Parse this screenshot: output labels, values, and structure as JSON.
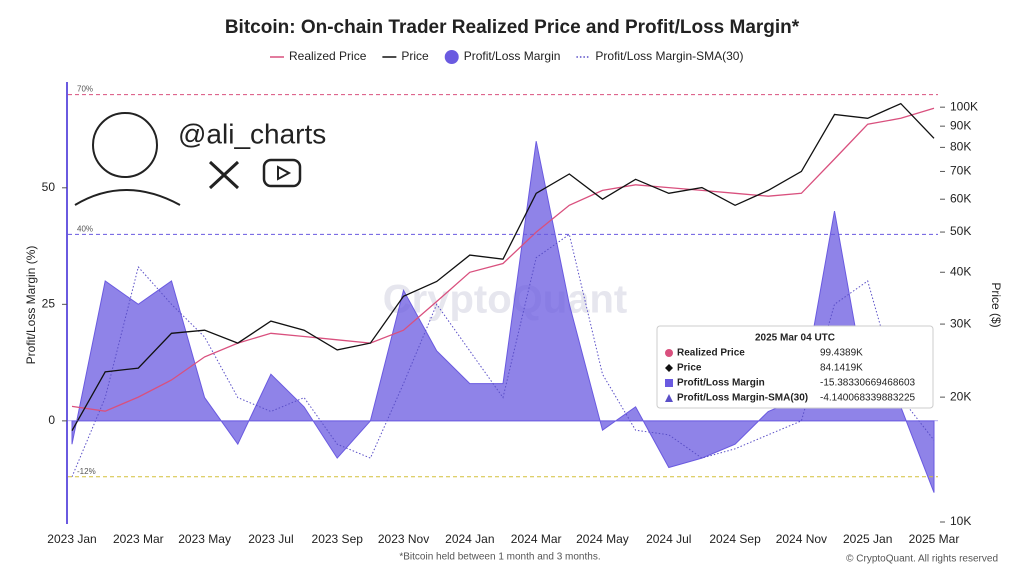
{
  "chart_data": {
    "type": "line",
    "title": "Bitcoin: On-chain Trader Realized Price and Profit/Loss Margin*",
    "y_label": "Profit/Loss Margin (%)",
    "y2_label": "Price ($)",
    "footnote": "*Bitcoin held between 1 month and 3 months.",
    "credit": "© CryptoQuant. All rights reserved",
    "watermark": "CryptoQuant",
    "handle": "@ali_charts",
    "categories": [
      "2023 Jan",
      null,
      "2023 Mar",
      null,
      "2023 May",
      null,
      "2023 Jul",
      null,
      "2023 Sep",
      null,
      "2023 Nov",
      null,
      "2024 Jan",
      null,
      "2024 Mar",
      null,
      "2024 May",
      null,
      "2024 Jul",
      null,
      "2024 Sep",
      null,
      "2024 Nov",
      null,
      "2025 Jan",
      null,
      "2025 Mar"
    ],
    "series": [
      {
        "name": "Realized Price",
        "color": "#d9507e",
        "axis": "y2",
        "style": "line",
        "values": [
          19000,
          18500,
          20000,
          22000,
          25000,
          27000,
          28500,
          28000,
          27500,
          27000,
          29000,
          34000,
          40000,
          42000,
          50000,
          58000,
          63000,
          65000,
          64000,
          63000,
          62000,
          61000,
          62000,
          75000,
          91000,
          94000,
          99438.9
        ]
      },
      {
        "name": "Price",
        "color": "#111111",
        "axis": "y2",
        "style": "line",
        "values": [
          16600,
          23000,
          23500,
          28500,
          29000,
          27000,
          30500,
          29000,
          26000,
          27000,
          35000,
          38000,
          44000,
          43000,
          62000,
          69000,
          60000,
          67000,
          62000,
          64000,
          58000,
          63000,
          70000,
          96000,
          94000,
          102000,
          84141.9
        ]
      },
      {
        "name": "Profit/Loss Margin",
        "color": "#6a5ae0",
        "axis": "y",
        "style": "area",
        "values": [
          -5,
          30,
          25,
          30,
          5,
          -5,
          10,
          3,
          -8,
          0,
          28,
          15,
          8,
          8,
          60,
          25,
          -2,
          3,
          -10,
          -8,
          -5,
          2,
          5,
          45,
          5,
          3,
          -15.38330669468603
        ]
      },
      {
        "name": "Profit/Loss Margin-SMA(30)",
        "color": "#5a4fc7",
        "axis": "y",
        "style": "dotted",
        "values": [
          -12,
          5,
          33,
          25,
          18,
          5,
          2,
          5,
          -5,
          -8,
          8,
          25,
          15,
          5,
          35,
          40,
          10,
          -2,
          -3,
          -8,
          -6,
          -3,
          0,
          25,
          30,
          5,
          -4.140068339883225
        ]
      }
    ],
    "ylim": [
      -21.7,
      72.7
    ],
    "yticks": [
      0,
      25,
      50
    ],
    "y2lim": [
      10000,
      115000
    ],
    "y2ticks": [
      {
        "value": 10000,
        "label": "10K"
      },
      {
        "value": 20000,
        "label": "20K"
      },
      {
        "value": 30000,
        "label": "30K"
      },
      {
        "value": 40000,
        "label": "40K"
      },
      {
        "value": 50000,
        "label": "50K"
      },
      {
        "value": 60000,
        "label": "60K"
      },
      {
        "value": 70000,
        "label": "70K"
      },
      {
        "value": 80000,
        "label": "80K"
      },
      {
        "value": 90000,
        "label": "90K"
      },
      {
        "value": 100000,
        "label": "100K"
      }
    ],
    "y2_log": true,
    "ref_lines": [
      {
        "value": 70,
        "label": "70%",
        "color": "#d9507e"
      },
      {
        "value": 40,
        "label": "40%",
        "color": "#6a5ae0"
      },
      {
        "value": -12,
        "label": "-12%",
        "color": "#d4c03a"
      }
    ],
    "tooltip": {
      "title": "2025 Mar 04 UTC",
      "rows": [
        {
          "label": "Realized Price",
          "value": "99.4389K"
        },
        {
          "label": "Price",
          "value": "84.1419K"
        },
        {
          "label": "Profit/Loss Margin",
          "value": "-15.38330669468603"
        },
        {
          "label": "Profit/Loss Margin-SMA(30)",
          "value": "-4.140068339883225"
        }
      ]
    }
  }
}
